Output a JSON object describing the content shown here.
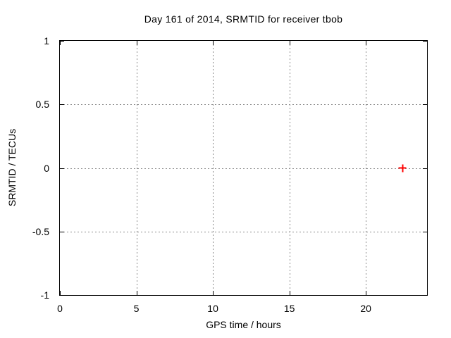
{
  "chart_data": {
    "type": "scatter",
    "title": "Day 161 of 2014, SRMTID for receiver tbob",
    "xlabel": "GPS time / hours",
    "ylabel": "SRMTID / TECUs",
    "xlim": [
      0,
      24
    ],
    "ylim": [
      -1,
      1
    ],
    "xticks": [
      0,
      5,
      10,
      15,
      20
    ],
    "yticks": [
      -1,
      -0.5,
      0,
      0.5,
      1
    ],
    "grid": true,
    "legend": "none",
    "grid_color": "#8a8a8a",
    "axis_color": "#000000",
    "series": [
      {
        "marker": "plus",
        "color": "#ff0000",
        "points": [
          {
            "x": 22.4,
            "y": 0
          }
        ]
      }
    ]
  }
}
